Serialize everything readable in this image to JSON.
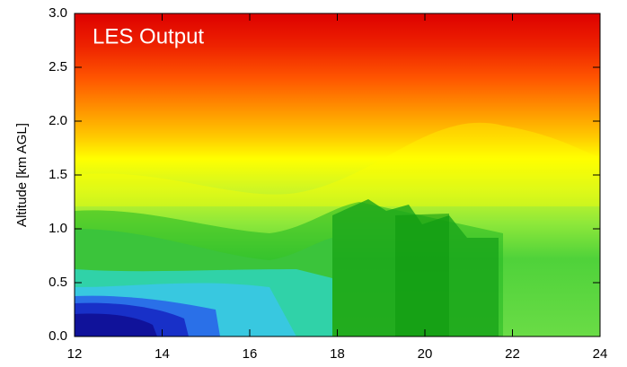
{
  "chart_data": {
    "type": "contour",
    "annotation": "LES Output",
    "y_label": "Altitude [km AGL]",
    "xlim": [
      12,
      24
    ],
    "xticks": [
      12,
      14,
      16,
      18,
      20,
      22,
      24
    ],
    "ylim": [
      0,
      3
    ],
    "yticks": [
      {
        "value": 0,
        "label": "0.0"
      },
      {
        "value": 0.5,
        "label": "0.5"
      },
      {
        "value": 1,
        "label": "1.0"
      },
      {
        "value": 1.5,
        "label": "1.5"
      },
      {
        "value": 2,
        "label": "2.0"
      },
      {
        "value": 2.5,
        "label": "2.5"
      },
      {
        "value": 3,
        "label": "3.0"
      }
    ]
  }
}
